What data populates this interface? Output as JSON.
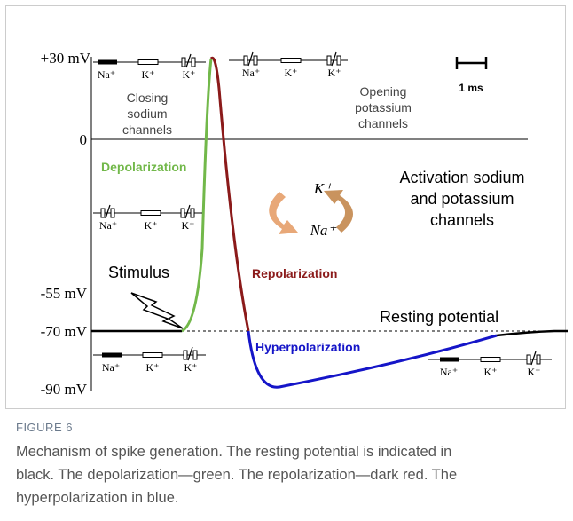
{
  "figure": {
    "axis_labels": [
      "+30 mV",
      "0",
      "-55 mV",
      "-70 mV",
      "-90 mV"
    ],
    "closing": [
      "Closing",
      "sodium",
      "channels"
    ],
    "opening": [
      "Opening",
      "potassium",
      "channels"
    ],
    "depolarization": "Depolarization",
    "repolarization": "Repolarization",
    "hyperpolarization": "Hyperpolarization",
    "stimulus": "Stimulus",
    "resting": "Resting potential",
    "activation": [
      "Activation sodium",
      "and potassium",
      "channels"
    ],
    "cycle": [
      "K⁺",
      "Na⁺"
    ],
    "scale": "1 ms",
    "channel_groups": [
      [
        "Na⁺",
        "K⁺",
        "K⁺"
      ],
      [
        "Na⁺",
        "K⁺",
        "K⁺"
      ],
      [
        "Na⁺",
        "K⁺",
        "K⁺"
      ],
      [
        "Na⁺",
        "K⁺",
        "K⁺"
      ],
      [
        "Na⁺",
        "K⁺",
        "K⁺"
      ]
    ]
  },
  "caption": {
    "label": "FIGURE 6",
    "lines": [
      "Mechanism of spike generation. The resting potential is indicated in",
      "black. The depolarization—green. The repolarization—dark red. The",
      "hyperpolarization in blue."
    ]
  }
}
